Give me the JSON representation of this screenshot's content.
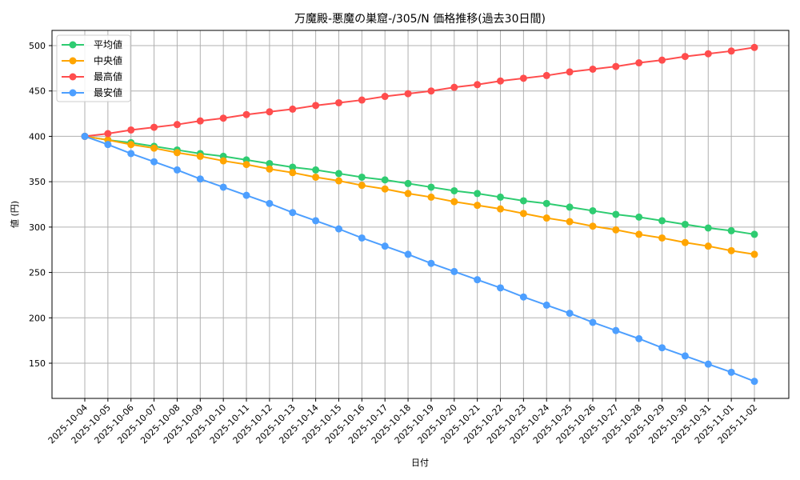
{
  "chart_data": {
    "type": "line",
    "title": "万魔殿-悪魔の巣窟-/305/N 価格推移(過去30日間)",
    "xlabel": "日付",
    "ylabel": "値 (円)",
    "ylim": [
      112,
      518
    ],
    "yticks": [
      150,
      200,
      250,
      300,
      350,
      400,
      450,
      500
    ],
    "grid": true,
    "legend_position": "upper left",
    "categories": [
      "2025-10-04",
      "2025-10-05",
      "2025-10-06",
      "2025-10-07",
      "2025-10-08",
      "2025-10-09",
      "2025-10-10",
      "2025-10-11",
      "2025-10-12",
      "2025-10-13",
      "2025-10-14",
      "2025-10-15",
      "2025-10-16",
      "2025-10-17",
      "2025-10-18",
      "2025-10-19",
      "2025-10-20",
      "2025-10-21",
      "2025-10-22",
      "2025-10-23",
      "2025-10-24",
      "2025-10-25",
      "2025-10-26",
      "2025-10-27",
      "2025-10-28",
      "2025-10-29",
      "2025-10-30",
      "2025-10-31",
      "2025-11-01",
      "2025-11-02"
    ],
    "series": [
      {
        "name": "平均値",
        "color": "#2ecc71",
        "values": [
          400,
          396,
          393,
          389,
          385,
          381,
          378,
          374,
          370,
          366,
          363,
          359,
          355,
          352,
          348,
          344,
          340,
          337,
          333,
          329,
          326,
          322,
          318,
          314,
          311,
          307,
          303,
          299,
          296,
          292
        ]
      },
      {
        "name": "中央値",
        "color": "#ffa500",
        "values": [
          400,
          396,
          391,
          387,
          382,
          378,
          373,
          369,
          364,
          360,
          355,
          351,
          346,
          342,
          337,
          333,
          328,
          324,
          320,
          315,
          310,
          306,
          301,
          297,
          292,
          288,
          283,
          279,
          274,
          270
        ]
      },
      {
        "name": "最高値",
        "color": "#ff4d4d",
        "values": [
          400,
          403,
          407,
          410,
          413,
          417,
          420,
          424,
          427,
          430,
          434,
          437,
          440,
          444,
          447,
          450,
          454,
          457,
          461,
          464,
          467,
          471,
          474,
          477,
          481,
          484,
          488,
          491,
          494,
          498
        ]
      },
      {
        "name": "最安値",
        "color": "#4d9fff",
        "values": [
          400,
          391,
          381,
          372,
          363,
          353,
          344,
          335,
          326,
          316,
          307,
          298,
          288,
          279,
          270,
          260,
          251,
          242,
          233,
          223,
          214,
          205,
          195,
          186,
          177,
          167,
          158,
          149,
          140,
          130
        ]
      }
    ]
  }
}
